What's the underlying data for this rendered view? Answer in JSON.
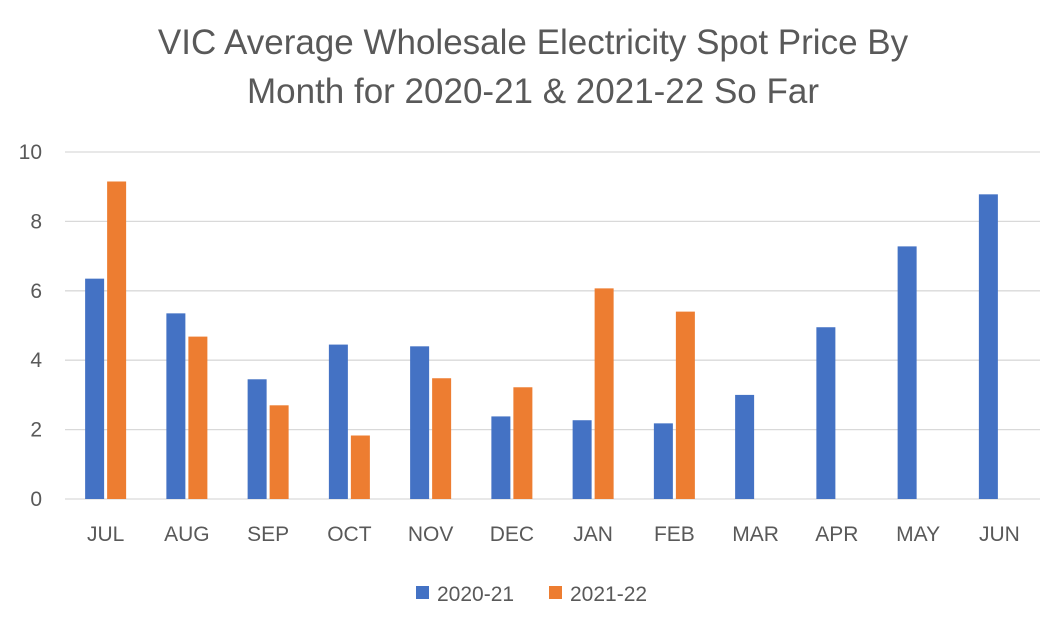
{
  "chart_data": {
    "type": "bar",
    "title_lines": [
      "VIC Average Wholesale Electricity Spot Price By",
      "Month for 2020-21 & 2021-22 So Far"
    ],
    "categories": [
      "JUL",
      "AUG",
      "SEP",
      "OCT",
      "NOV",
      "DEC",
      "JAN",
      "FEB",
      "MAR",
      "APR",
      "MAY",
      "JUN"
    ],
    "series": [
      {
        "name": "2020-21",
        "color": "#4472C4",
        "values": [
          6.35,
          5.35,
          3.45,
          4.45,
          4.4,
          2.38,
          2.27,
          2.18,
          3.0,
          4.95,
          7.28,
          8.78
        ]
      },
      {
        "name": "2021-22",
        "color": "#ED7D31",
        "values": [
          9.15,
          4.68,
          2.7,
          1.83,
          3.48,
          3.22,
          6.07,
          5.4,
          null,
          null,
          null,
          null
        ]
      }
    ],
    "ylim": [
      0,
      10
    ],
    "yticks": [
      "0",
      "2",
      "4",
      "6",
      "8",
      "10"
    ],
    "grid": true,
    "gridline_color": "#D9D9D9",
    "legend_position": "bottom"
  }
}
